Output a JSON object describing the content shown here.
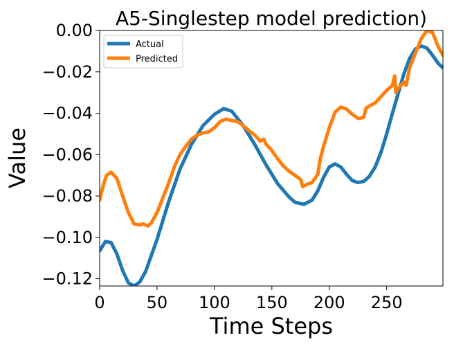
{
  "chart_data": {
    "type": "line",
    "title": "A5-Singlestep model prediction)",
    "xlabel": "Time Steps",
    "ylabel": "Value",
    "xlim": [
      0,
      299
    ],
    "ylim": [
      -0.1235,
      0.0
    ],
    "xticks": [
      0,
      50,
      100,
      150,
      200,
      250
    ],
    "xtick_labels": [
      "0",
      "50",
      "100",
      "150",
      "200",
      "250"
    ],
    "yticks": [
      0.0,
      -0.02,
      -0.04,
      -0.06,
      -0.08,
      -0.1,
      -0.12
    ],
    "ytick_labels": [
      "0.00",
      "−0.02",
      "−0.04",
      "−0.06",
      "−0.08",
      "−0.10",
      "−0.12"
    ],
    "grid": false,
    "legend_position": "upper-left",
    "series": [
      {
        "name": "Actual",
        "color": "#1f77b4",
        "x": [
          0,
          5,
          10,
          15,
          20,
          25,
          30,
          35,
          40,
          50,
          60,
          70,
          80,
          90,
          100,
          108,
          115,
          125,
          135,
          145,
          155,
          165,
          170,
          178,
          185,
          190,
          195,
          200,
          205,
          210,
          215,
          220,
          225,
          230,
          235,
          240,
          245,
          250,
          255,
          260,
          265,
          270,
          275,
          280,
          285,
          290,
          295,
          299
        ],
        "y": [
          -0.1065,
          -0.102,
          -0.1025,
          -0.108,
          -0.116,
          -0.122,
          -0.1235,
          -0.1215,
          -0.1165,
          -0.101,
          -0.083,
          -0.067,
          -0.055,
          -0.046,
          -0.0405,
          -0.0378,
          -0.039,
          -0.046,
          -0.055,
          -0.065,
          -0.074,
          -0.0805,
          -0.083,
          -0.084,
          -0.082,
          -0.0775,
          -0.071,
          -0.066,
          -0.0645,
          -0.066,
          -0.0695,
          -0.0725,
          -0.0735,
          -0.073,
          -0.0705,
          -0.066,
          -0.059,
          -0.05,
          -0.04,
          -0.0305,
          -0.021,
          -0.0135,
          -0.009,
          -0.0075,
          -0.0085,
          -0.012,
          -0.016,
          -0.018
        ]
      },
      {
        "name": "Predicted",
        "color": "#ff7f0e",
        "x": [
          0,
          3,
          6,
          10,
          15,
          20,
          25,
          30,
          35,
          38,
          42,
          45,
          50,
          55,
          60,
          65,
          70,
          75,
          80,
          85,
          88,
          90,
          95,
          100,
          105,
          110,
          115,
          120,
          125,
          130,
          135,
          140,
          143,
          145,
          150,
          155,
          160,
          165,
          170,
          175,
          177,
          180,
          185,
          190,
          192,
          195,
          200,
          205,
          210,
          215,
          220,
          225,
          230,
          232,
          235,
          240,
          245,
          250,
          255,
          257,
          258,
          260,
          265,
          267,
          270,
          275,
          280,
          285,
          290,
          295,
          299
        ],
        "y": [
          -0.082,
          -0.075,
          -0.07,
          -0.0685,
          -0.0715,
          -0.08,
          -0.088,
          -0.0935,
          -0.094,
          -0.0935,
          -0.0945,
          -0.093,
          -0.088,
          -0.081,
          -0.074,
          -0.066,
          -0.06,
          -0.056,
          -0.0525,
          -0.0505,
          -0.05,
          -0.0495,
          -0.049,
          -0.047,
          -0.044,
          -0.0428,
          -0.0435,
          -0.044,
          -0.046,
          -0.0485,
          -0.0505,
          -0.0535,
          -0.0525,
          -0.055,
          -0.058,
          -0.062,
          -0.0655,
          -0.068,
          -0.07,
          -0.072,
          -0.0755,
          -0.0745,
          -0.0735,
          -0.0695,
          -0.0625,
          -0.056,
          -0.047,
          -0.0395,
          -0.037,
          -0.038,
          -0.0405,
          -0.0425,
          -0.042,
          -0.0375,
          -0.0365,
          -0.035,
          -0.032,
          -0.029,
          -0.0265,
          -0.022,
          -0.03,
          -0.028,
          -0.025,
          -0.0265,
          -0.018,
          -0.011,
          -0.004,
          0.0,
          -0.001,
          -0.008,
          -0.012
        ]
      }
    ]
  }
}
